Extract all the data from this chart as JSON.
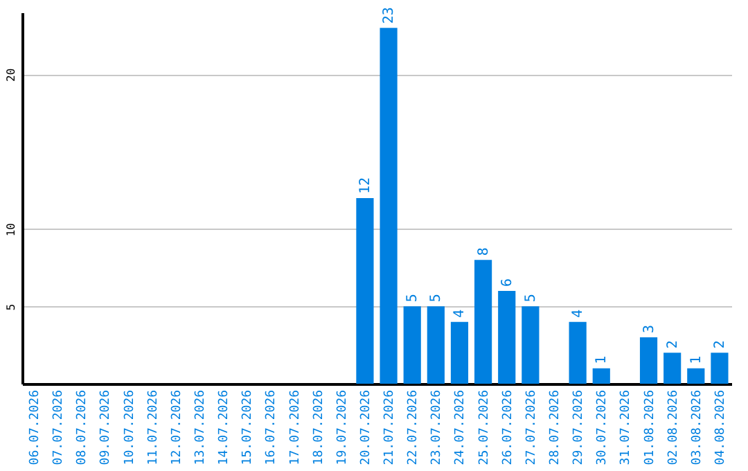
{
  "chart_data": {
    "type": "bar",
    "categories": [
      "06.07.2026",
      "07.07.2026",
      "08.07.2026",
      "09.07.2026",
      "10.07.2026",
      "11.07.2026",
      "12.07.2026",
      "13.07.2026",
      "14.07.2026",
      "15.07.2026",
      "16.07.2026",
      "17.07.2026",
      "18.07.2026",
      "19.07.2026",
      "20.07.2026",
      "21.07.2026",
      "22.07.2026",
      "23.07.2026",
      "24.07.2026",
      "25.07.2026",
      "26.07.2026",
      "27.07.2026",
      "28.07.2026",
      "29.07.2026",
      "30.07.2026",
      "31.07.2026",
      "01.08.2026",
      "02.08.2026",
      "03.08.2026",
      "04.08.2026"
    ],
    "values": [
      0,
      0,
      0,
      0,
      0,
      0,
      0,
      0,
      0,
      0,
      0,
      0,
      0,
      0,
      12,
      23,
      5,
      5,
      4,
      8,
      6,
      5,
      0,
      4,
      1,
      0,
      3,
      2,
      1,
      2
    ],
    "value_labels": [
      null,
      null,
      null,
      null,
      null,
      null,
      null,
      null,
      null,
      null,
      null,
      null,
      null,
      null,
      "12",
      "23",
      "5",
      "5",
      "4",
      "8",
      "6",
      "5",
      null,
      "4",
      "1",
      null,
      "3",
      "2",
      "1",
      "2"
    ],
    "color": "#0080e0",
    "ylim": [
      0,
      24
    ],
    "yticks": [
      5,
      10,
      20
    ],
    "grid": "y"
  }
}
